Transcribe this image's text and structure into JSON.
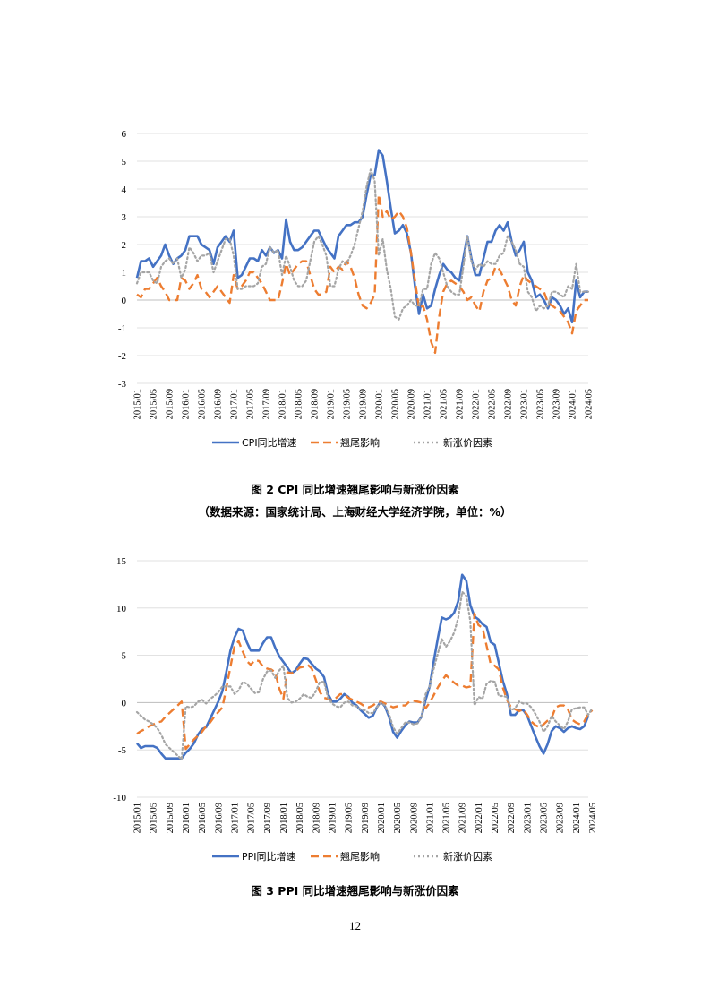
{
  "figures": [
    {
      "caption": "图 2 CPI 同比增速翘尾影响与新涨价因素",
      "source": "（数据来源：国家统计局、上海财经大学经济学院，单位：%）"
    },
    {
      "caption": "图 3 PPI 同比增速翘尾影响与新涨价因素",
      "source": ""
    }
  ],
  "page_number": "12",
  "colors": {
    "series1": "#4472C4",
    "series2": "#ED7D31",
    "series3": "#A5A5A5",
    "grid": "#D9D9D9"
  },
  "chart_data": [
    {
      "type": "line",
      "title": "",
      "xlabel": "",
      "ylabel": "",
      "ylim": [
        -3,
        6
      ],
      "yticks": [
        -3,
        -2,
        -1,
        0,
        1,
        2,
        3,
        4,
        5,
        6
      ],
      "grid": "horizontal",
      "legend": "bottom",
      "xtick_labels": [
        "2015/01",
        "2015/05",
        "2015/09",
        "2016/01",
        "2016/05",
        "2016/09",
        "2017/01",
        "2017/05",
        "2017/09",
        "2018/01",
        "2018/05",
        "2018/09",
        "2019/01",
        "2019/05",
        "2019/09",
        "2020/01",
        "2020/05",
        "2020/09",
        "2021/01",
        "2021/05",
        "2021/09",
        "2022/01",
        "2022/05",
        "2022/09",
        "2023/01",
        "2023/05",
        "2023/09",
        "2024/01",
        "2024/05"
      ],
      "x_start": "2015/01",
      "x_end": "2024/05",
      "series": [
        {
          "name": "CPI同比增速",
          "style": "solid",
          "values": [
            0.8,
            1.4,
            1.4,
            1.5,
            1.2,
            1.4,
            1.6,
            2.0,
            1.6,
            1.3,
            1.5,
            1.6,
            1.8,
            2.3,
            2.3,
            2.3,
            2.0,
            1.9,
            1.8,
            1.3,
            1.9,
            2.1,
            2.3,
            2.1,
            2.5,
            0.8,
            0.9,
            1.2,
            1.5,
            1.5,
            1.4,
            1.8,
            1.6,
            1.9,
            1.7,
            1.8,
            1.5,
            2.9,
            2.1,
            1.8,
            1.8,
            1.9,
            2.1,
            2.3,
            2.5,
            2.5,
            2.2,
            1.9,
            1.7,
            1.5,
            2.3,
            2.5,
            2.7,
            2.7,
            2.8,
            2.8,
            3.0,
            3.8,
            4.5,
            4.5,
            5.4,
            5.2,
            4.3,
            3.3,
            2.4,
            2.5,
            2.7,
            2.4,
            1.7,
            0.5,
            -0.5,
            0.2,
            -0.3,
            -0.2,
            0.4,
            0.9,
            1.3,
            1.1,
            1.0,
            0.8,
            0.7,
            1.5,
            2.3,
            1.5,
            0.9,
            0.9,
            1.5,
            2.1,
            2.1,
            2.5,
            2.7,
            2.5,
            2.8,
            2.1,
            1.6,
            1.8,
            2.1,
            1.0,
            0.7,
            0.1,
            0.2,
            0.0,
            -0.3,
            0.1,
            0.0,
            -0.2,
            -0.5,
            -0.3,
            -0.8,
            0.7,
            0.1,
            0.3,
            0.3
          ]
        },
        {
          "name": "翘尾影响",
          "style": "dashed",
          "values": [
            0.2,
            0.1,
            0.4,
            0.4,
            0.6,
            0.8,
            0.5,
            0.3,
            0.0,
            0.0,
            0.0,
            0.8,
            0.7,
            0.4,
            0.6,
            0.9,
            0.4,
            0.3,
            0.1,
            0.3,
            0.5,
            0.3,
            0.1,
            -0.1,
            0.9,
            0.4,
            0.5,
            0.7,
            1.0,
            1.0,
            0.8,
            0.6,
            0.3,
            0.0,
            0.0,
            0.0,
            0.6,
            1.3,
            0.9,
            1.1,
            1.3,
            1.4,
            1.4,
            0.9,
            0.4,
            0.2,
            0.2,
            0.3,
            1.2,
            1.0,
            1.2,
            1.1,
            1.4,
            1.2,
            0.8,
            0.2,
            -0.2,
            -0.3,
            -0.1,
            0.2,
            3.8,
            3.0,
            3.2,
            2.9,
            3.0,
            3.2,
            3.0,
            2.6,
            1.7,
            0.7,
            -0.3,
            -0.2,
            -0.7,
            -1.5,
            -1.9,
            -0.6,
            0.3,
            0.6,
            0.7,
            0.6,
            0.5,
            0.3,
            0.0,
            0.1,
            -0.2,
            -0.4,
            0.3,
            0.7,
            0.8,
            1.2,
            1.1,
            0.8,
            0.5,
            0.0,
            -0.2,
            0.5,
            0.9,
            0.7,
            0.6,
            0.5,
            0.4,
            0.3,
            -0.1,
            -0.2,
            -0.3,
            -0.4,
            -0.6,
            -0.8,
            -1.2,
            -0.4,
            -0.2,
            0.0,
            0.0
          ]
        },
        {
          "name": "新涨价因素",
          "style": "dotted",
          "values": [
            0.6,
            1.0,
            1.0,
            1.0,
            0.7,
            0.6,
            1.2,
            1.4,
            1.5,
            1.3,
            1.5,
            0.8,
            1.1,
            1.9,
            1.7,
            1.4,
            1.6,
            1.6,
            1.7,
            1.0,
            1.4,
            1.8,
            2.2,
            2.2,
            1.6,
            0.4,
            0.4,
            0.5,
            0.5,
            0.5,
            0.6,
            1.2,
            1.3,
            1.9,
            1.7,
            1.8,
            0.9,
            1.6,
            1.2,
            0.7,
            0.5,
            0.5,
            0.7,
            1.4,
            2.1,
            2.3,
            2.0,
            1.6,
            0.5,
            0.5,
            1.1,
            1.4,
            1.3,
            1.6,
            2.0,
            2.6,
            3.2,
            4.1,
            4.7,
            4.3,
            1.6,
            2.2,
            1.1,
            0.4,
            -0.6,
            -0.7,
            -0.3,
            -0.2,
            0.0,
            -0.2,
            -0.2,
            0.4,
            0.4,
            1.3,
            1.7,
            1.5,
            1.0,
            0.5,
            0.3,
            0.2,
            0.2,
            1.2,
            2.3,
            1.4,
            1.1,
            1.3,
            1.2,
            1.4,
            1.3,
            1.3,
            1.6,
            1.7,
            2.3,
            2.1,
            1.8,
            1.3,
            1.2,
            0.3,
            0.1,
            -0.4,
            -0.2,
            -0.3,
            -0.2,
            0.3,
            0.3,
            0.2,
            0.1,
            0.5,
            0.4,
            1.3,
            0.3,
            0.3,
            0.3
          ]
        }
      ]
    },
    {
      "type": "line",
      "title": "",
      "xlabel": "",
      "ylabel": "",
      "ylim": [
        -10,
        15
      ],
      "yticks": [
        -10,
        -5,
        0,
        5,
        10,
        15
      ],
      "grid": "horizontal",
      "legend": "bottom",
      "xtick_labels": [
        "2015/01",
        "2015/05",
        "2015/09",
        "2016/01",
        "2016/05",
        "2016/09",
        "2017/01",
        "2017/05",
        "2017/09",
        "2018/01",
        "2018/05",
        "2018/09",
        "2019/01",
        "2019/05",
        "2019/09",
        "2020/01",
        "2020/05",
        "2020/09",
        "2021/01",
        "2021/05",
        "2021/09",
        "2022/01",
        "2022/05",
        "2022/09",
        "2023/01",
        "2023/05",
        "2023/09",
        "2024/01",
        "2024/05"
      ],
      "x_start": "2015/01",
      "x_end": "2024/05",
      "series": [
        {
          "name": "PPI同比增速",
          "style": "solid",
          "values": [
            -4.3,
            -4.8,
            -4.6,
            -4.6,
            -4.6,
            -4.8,
            -5.4,
            -5.9,
            -5.9,
            -5.9,
            -5.9,
            -5.9,
            -5.3,
            -4.9,
            -4.3,
            -3.4,
            -2.8,
            -2.6,
            -1.7,
            -0.8,
            0.1,
            1.2,
            3.3,
            5.5,
            6.9,
            7.8,
            7.6,
            6.4,
            5.5,
            5.5,
            5.5,
            6.3,
            6.9,
            6.9,
            5.8,
            4.9,
            4.3,
            3.7,
            3.1,
            3.4,
            4.1,
            4.7,
            4.6,
            4.1,
            3.6,
            3.3,
            2.7,
            0.9,
            0.1,
            0.1,
            0.4,
            0.9,
            0.6,
            0.0,
            -0.3,
            -0.8,
            -1.2,
            -1.6,
            -1.4,
            -0.5,
            0.1,
            -0.4,
            -1.5,
            -3.1,
            -3.7,
            -3.0,
            -2.4,
            -2.0,
            -2.1,
            -2.1,
            -1.5,
            0.3,
            1.7,
            4.4,
            6.8,
            9.0,
            8.8,
            9.0,
            9.5,
            10.7,
            13.5,
            12.9,
            10.3,
            9.1,
            8.8,
            8.3,
            8.0,
            6.4,
            6.1,
            4.2,
            2.3,
            0.9,
            -1.3,
            -1.3,
            -0.8,
            -0.8,
            -1.4,
            -2.5,
            -3.6,
            -4.6,
            -5.4,
            -4.4,
            -3.0,
            -2.5,
            -2.7,
            -3.1,
            -2.7,
            -2.5,
            -2.7,
            -2.8,
            -2.5,
            -1.4
          ]
        },
        {
          "name": "翘尾影响",
          "style": "dashed",
          "values": [
            -3.3,
            -3.0,
            -2.8,
            -2.5,
            -2.3,
            -2.1,
            -2.0,
            -1.5,
            -1.1,
            -0.7,
            -0.3,
            0.1,
            -4.9,
            -4.4,
            -3.9,
            -3.5,
            -3.1,
            -2.5,
            -2.1,
            -1.5,
            -1.0,
            -0.5,
            1.6,
            3.8,
            6.0,
            6.5,
            5.4,
            4.4,
            4.0,
            4.5,
            4.4,
            3.8,
            3.6,
            3.5,
            3.2,
            1.5,
            0.4,
            3.2,
            3.1,
            3.3,
            3.7,
            3.8,
            4.0,
            3.6,
            2.4,
            1.1,
            0.5,
            0.4,
            0.2,
            0.5,
            0.9,
            0.9,
            0.5,
            0.3,
            0.1,
            -0.1,
            -0.4,
            -0.5,
            -0.3,
            0.0,
            0.1,
            -0.1,
            -0.3,
            -0.5,
            -0.4,
            -0.3,
            -0.3,
            0.1,
            0.2,
            0.1,
            0.0,
            -0.6,
            0.0,
            0.8,
            1.6,
            2.3,
            2.9,
            2.5,
            2.1,
            1.8,
            1.8,
            1.6,
            1.7,
            9.4,
            8.2,
            7.9,
            6.0,
            4.1,
            3.9,
            3.5,
            1.6,
            0.3,
            -0.5,
            -0.7,
            -0.9,
            -0.7,
            -1.3,
            -2.0,
            -2.4,
            -2.6,
            -2.3,
            -1.9,
            -1.6,
            -0.5,
            -0.3,
            -0.3,
            -0.7,
            -1.8,
            -2.1,
            -2.3,
            -2.0,
            -1.2,
            -0.8
          ]
        },
        {
          "name": "新涨价因素",
          "style": "dotted",
          "values": [
            -1.0,
            -1.4,
            -1.8,
            -2.0,
            -2.3,
            -2.7,
            -3.4,
            -4.4,
            -4.8,
            -5.2,
            -5.6,
            -6.0,
            -0.4,
            -0.5,
            -0.4,
            0.1,
            0.3,
            -0.1,
            0.4,
            0.7,
            1.1,
            1.7,
            1.7,
            1.7,
            0.9,
            1.3,
            2.2,
            2.0,
            1.5,
            1.0,
            1.1,
            2.5,
            3.3,
            3.4,
            2.6,
            3.4,
            3.9,
            0.5,
            0.0,
            0.1,
            0.4,
            0.9,
            0.6,
            0.5,
            1.2,
            2.2,
            2.2,
            0.5,
            -0.1,
            -0.4,
            -0.5,
            0.0,
            0.1,
            -0.3,
            -0.4,
            -0.7,
            -0.8,
            -1.1,
            -1.1,
            -0.5,
            0.0,
            -0.3,
            -1.2,
            -2.6,
            -3.3,
            -2.7,
            -2.1,
            -2.1,
            -2.3,
            -2.2,
            -1.5,
            0.9,
            1.7,
            3.6,
            5.2,
            6.7,
            5.9,
            6.5,
            7.4,
            8.9,
            11.7,
            11.3,
            8.6,
            -0.3,
            0.6,
            0.4,
            2.0,
            2.3,
            2.2,
            0.7,
            0.7,
            0.6,
            -0.8,
            -0.6,
            0.1,
            -0.1,
            -0.1,
            -0.5,
            -1.2,
            -2.0,
            -3.1,
            -2.5,
            -1.4,
            -2.0,
            -2.4,
            -2.8,
            -2.0,
            -0.7,
            -0.6,
            -0.5,
            -0.5,
            -1.3,
            -0.6
          ]
        }
      ]
    }
  ]
}
